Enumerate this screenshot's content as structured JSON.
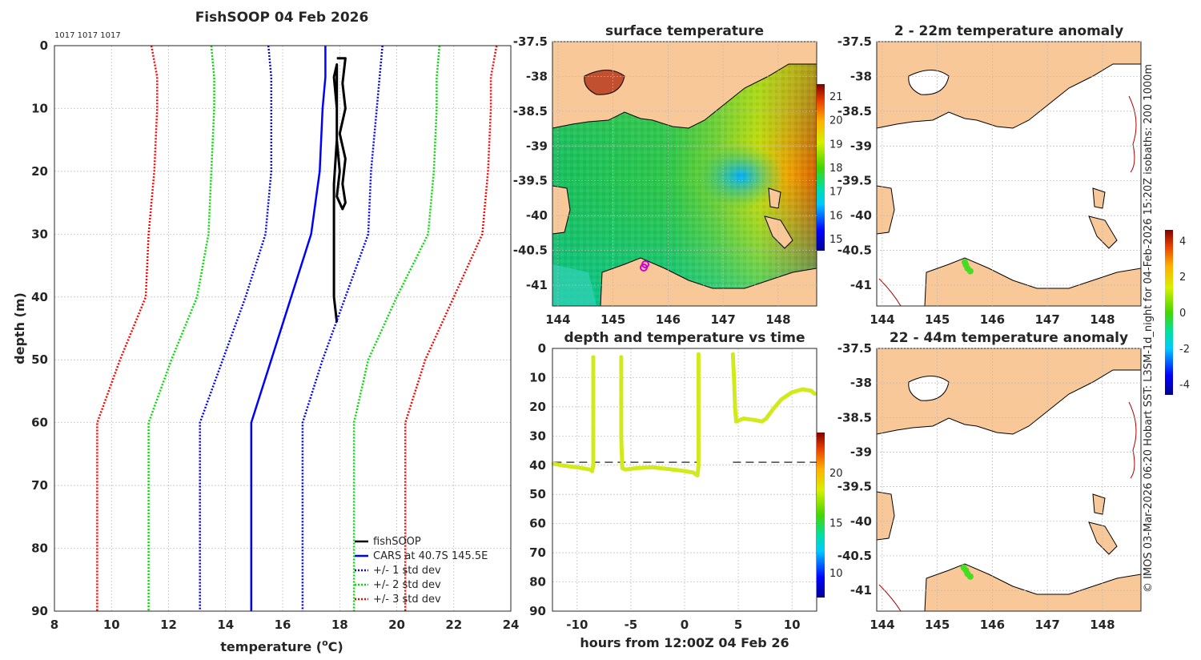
{
  "chart_data": [
    {
      "type": "line",
      "title": "FishSOOP 04 Feb 2026",
      "annotation": "1017 1017 1017",
      "xlabel": "temperature (°C)",
      "ylabel": "depth (m)",
      "xlim": [
        8,
        24
      ],
      "ylim": [
        0,
        90
      ],
      "xticks": [
        "8",
        "10",
        "12",
        "14",
        "16",
        "18",
        "20",
        "22",
        "24"
      ],
      "yticks": [
        "0",
        "10",
        "20",
        "30",
        "40",
        "50",
        "60",
        "70",
        "80",
        "90"
      ],
      "legend_position": "bottom-right",
      "series": [
        {
          "name": "fishSOOP",
          "color": "#000000",
          "style": "solid",
          "width": 3,
          "points": [
            [
              17.9,
              2
            ],
            [
              18.2,
              2
            ],
            [
              18.1,
              6
            ],
            [
              18.2,
              10
            ],
            [
              18.0,
              14
            ],
            [
              18.2,
              18
            ],
            [
              18.1,
              22
            ],
            [
              18.2,
              25
            ],
            [
              18.1,
              26
            ],
            [
              17.9,
              24
            ],
            [
              18.0,
              20
            ],
            [
              17.9,
              15
            ],
            [
              17.9,
              10
            ],
            [
              17.8,
              5
            ],
            [
              17.9,
              3
            ],
            [
              17.9,
              8
            ],
            [
              17.9,
              15
            ],
            [
              17.8,
              22
            ],
            [
              17.8,
              28
            ],
            [
              17.8,
              34
            ],
            [
              17.8,
              40
            ],
            [
              17.9,
              44
            ]
          ]
        },
        {
          "name": "CARS at 40.7S 145.5E",
          "color": "#0000ff",
          "style": "solid",
          "width": 2.5,
          "points": [
            [
              17.5,
              0
            ],
            [
              17.5,
              5
            ],
            [
              17.4,
              10
            ],
            [
              17.3,
              20
            ],
            [
              17.0,
              30
            ],
            [
              16.3,
              40
            ],
            [
              15.6,
              50
            ],
            [
              14.9,
              60
            ],
            [
              14.9,
              70
            ],
            [
              14.9,
              80
            ],
            [
              14.9,
              90
            ]
          ]
        },
        {
          "name": "+/- 1 std dev",
          "color": "#0000ff",
          "style": "dotted",
          "width": 2.5,
          "points": [
            [
              15.5,
              0
            ],
            [
              15.6,
              5
            ],
            [
              15.6,
              10
            ],
            [
              15.6,
              20
            ],
            [
              15.4,
              30
            ],
            [
              14.7,
              40
            ],
            [
              13.9,
              50
            ],
            [
              13.1,
              60
            ],
            [
              13.1,
              70
            ],
            [
              13.1,
              80
            ],
            [
              13.1,
              90
            ]
          ]
        },
        {
          "name": "+/- 1 std dev (upper)",
          "legend": false,
          "color": "#0000ff",
          "style": "dotted",
          "width": 2.5,
          "points": [
            [
              19.5,
              0
            ],
            [
              19.4,
              5
            ],
            [
              19.3,
              10
            ],
            [
              19.1,
              20
            ],
            [
              19.0,
              30
            ],
            [
              18.2,
              40
            ],
            [
              17.4,
              50
            ],
            [
              16.7,
              60
            ],
            [
              16.7,
              70
            ],
            [
              16.7,
              80
            ],
            [
              16.7,
              90
            ]
          ]
        },
        {
          "name": "+/- 2 std dev",
          "color": "#00dd00",
          "style": "dotted",
          "width": 2.5,
          "points": [
            [
              13.5,
              0
            ],
            [
              13.6,
              5
            ],
            [
              13.6,
              10
            ],
            [
              13.5,
              20
            ],
            [
              13.4,
              30
            ],
            [
              13.0,
              40
            ],
            [
              12.1,
              50
            ],
            [
              11.3,
              60
            ],
            [
              11.3,
              70
            ],
            [
              11.3,
              80
            ],
            [
              11.3,
              90
            ]
          ]
        },
        {
          "name": "+/- 2 std dev (upper)",
          "legend": false,
          "color": "#00dd00",
          "style": "dotted",
          "width": 2.5,
          "points": [
            [
              21.5,
              0
            ],
            [
              21.4,
              5
            ],
            [
              21.4,
              10
            ],
            [
              21.3,
              20
            ],
            [
              21.1,
              30
            ],
            [
              20.0,
              40
            ],
            [
              19.0,
              50
            ],
            [
              18.5,
              60
            ],
            [
              18.5,
              70
            ],
            [
              18.5,
              80
            ],
            [
              18.5,
              90
            ]
          ]
        },
        {
          "name": "+/- 3 std dev",
          "color": "#ff0000",
          "style": "dotted",
          "width": 2.5,
          "points": [
            [
              11.4,
              0
            ],
            [
              11.6,
              5
            ],
            [
              11.6,
              10
            ],
            [
              11.5,
              20
            ],
            [
              11.3,
              30
            ],
            [
              11.2,
              40
            ],
            [
              10.3,
              50
            ],
            [
              9.5,
              60
            ],
            [
              9.5,
              70
            ],
            [
              9.5,
              80
            ],
            [
              9.5,
              90
            ]
          ]
        },
        {
          "name": "+/- 3 std dev (upper)",
          "legend": false,
          "color": "#ff0000",
          "style": "dotted",
          "width": 2.5,
          "points": [
            [
              23.5,
              0
            ],
            [
              23.3,
              5
            ],
            [
              23.3,
              10
            ],
            [
              23.2,
              20
            ],
            [
              23.0,
              30
            ],
            [
              22.0,
              40
            ],
            [
              21.0,
              50
            ],
            [
              20.3,
              60
            ],
            [
              20.3,
              70
            ],
            [
              20.3,
              80
            ],
            [
              20.3,
              90
            ]
          ]
        }
      ]
    },
    {
      "type": "heatmap",
      "title": "surface temperature",
      "xlim": [
        143.9,
        148.7
      ],
      "ylim": [
        -41.3,
        -37.5
      ],
      "xticks": [
        "144",
        "145",
        "146",
        "147",
        "148"
      ],
      "yticks": [
        "-37.5",
        "-38",
        "-38.5",
        "-39",
        "-39.5",
        "-40",
        "-40.5",
        "-41"
      ],
      "colorbar_ticks": [
        "21",
        "20",
        "19",
        "18",
        "17",
        "16",
        "15"
      ],
      "colorbar_range": [
        14.5,
        21.5
      ]
    },
    {
      "type": "scatter",
      "title": "depth and temperature vs time",
      "xlabel": "hours from 12:00Z 04 Feb 26",
      "xlim": [
        -12.3,
        12.3
      ],
      "ylim": [
        0,
        90
      ],
      "xticks": [
        "-10",
        "-5",
        "0",
        "5",
        "10"
      ],
      "yticks": [
        "0",
        "10",
        "20",
        "30",
        "40",
        "50",
        "60",
        "70",
        "80",
        "90"
      ],
      "reference_depth": 39,
      "colorbar_ticks": [
        "20",
        "15",
        "10"
      ],
      "colorbar_range": [
        7.5,
        24
      ],
      "segments": [
        [
          [
            -12.2,
            39.5
          ],
          [
            -11.5,
            40
          ],
          [
            -10.5,
            40.5
          ],
          [
            -9.5,
            41
          ],
          [
            -8.8,
            41.5
          ],
          [
            -8.6,
            42
          ],
          [
            -8.5,
            40
          ],
          [
            -8.5,
            30
          ],
          [
            -8.5,
            20
          ],
          [
            -8.5,
            10
          ],
          [
            -8.5,
            3
          ]
        ],
        [
          [
            -5.9,
            3
          ],
          [
            -5.9,
            15
          ],
          [
            -5.9,
            30
          ],
          [
            -5.8,
            41
          ],
          [
            -5.5,
            41.5
          ],
          [
            -4.5,
            41
          ],
          [
            -3.0,
            40.7
          ],
          [
            -1.5,
            41.3
          ],
          [
            0,
            42
          ],
          [
            0.8,
            42.5
          ],
          [
            1.2,
            43.5
          ],
          [
            1.3,
            40
          ],
          [
            1.3,
            25
          ],
          [
            1.3,
            10
          ],
          [
            1.3,
            2
          ]
        ],
        [
          [
            4.5,
            2
          ],
          [
            4.6,
            10
          ],
          [
            4.7,
            20
          ],
          [
            4.8,
            25
          ],
          [
            5.5,
            24
          ],
          [
            6.5,
            24.5
          ],
          [
            7.2,
            25
          ],
          [
            7.6,
            24
          ],
          [
            8.2,
            21
          ],
          [
            9.0,
            17.5
          ],
          [
            10.0,
            15
          ],
          [
            11.0,
            14
          ],
          [
            11.8,
            14.5
          ],
          [
            12.1,
            15.5
          ]
        ]
      ]
    },
    {
      "type": "scatter",
      "title": "2 - 22m temperature anomaly",
      "xlim": [
        143.9,
        148.7
      ],
      "ylim": [
        -41.3,
        -37.5
      ],
      "xticks": [
        "144",
        "145",
        "146",
        "147",
        "148"
      ],
      "yticks": [
        "-37.5",
        "-38",
        "-38.5",
        "-39",
        "-39.5",
        "-40",
        "-40.5",
        "-41"
      ],
      "points": [
        [
          145.5,
          -40.67
        ],
        [
          145.52,
          -40.71
        ],
        [
          145.55,
          -40.76
        ],
        [
          145.6,
          -40.8
        ]
      ]
    },
    {
      "type": "scatter",
      "title": "22 - 44m temperature anomaly",
      "xlim": [
        143.9,
        148.7
      ],
      "ylim": [
        -41.3,
        -37.5
      ],
      "xticks": [
        "144",
        "145",
        "146",
        "147",
        "148"
      ],
      "yticks": [
        "-37.5",
        "-38",
        "-38.5",
        "-39",
        "-39.5",
        "-40",
        "-40.5",
        "-41"
      ],
      "points": [
        [
          145.48,
          -40.67
        ],
        [
          145.52,
          -40.71
        ],
        [
          145.55,
          -40.76
        ],
        [
          145.6,
          -40.8
        ]
      ]
    }
  ],
  "anomaly_colorbar": {
    "ticks": [
      "4",
      "2",
      "0",
      "-2",
      "-4"
    ],
    "range": [
      -4.6,
      4.6
    ]
  },
  "side_caption": "© IMOS 03-Mar-2026 06:20 Hobart SST: L3SM-1d_night for 04-Feb-2026 15:20Z isobaths: 200  1000m",
  "colors": {
    "land": "#f9c898",
    "axis": "#262626",
    "coast": "#000000",
    "isobath": "#aa0000"
  }
}
